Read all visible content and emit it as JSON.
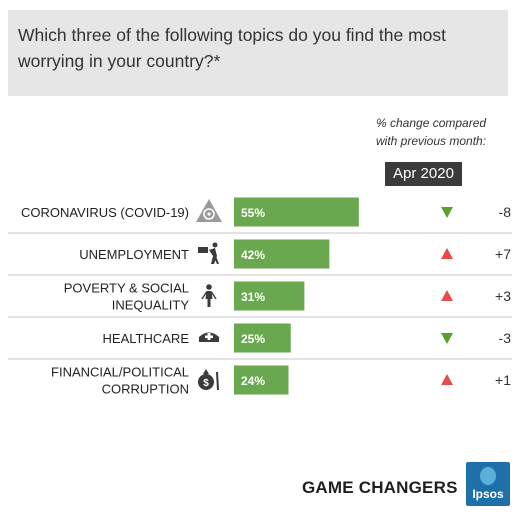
{
  "question": "Which three of the following topics do you find the most worrying in your country?*",
  "compare_label_line1": "% change compared",
  "compare_label_line2": "with previous month:",
  "period": "Apr 2020",
  "footer_title": "GAME CHANGERS",
  "brand": "Ipsos",
  "colors": {
    "bar": "#6aa84f",
    "up": "#e74c4c",
    "down": "#5aa02c",
    "question_bg": "#e6e6e6"
  },
  "chart_data": {
    "type": "bar",
    "orientation": "horizontal",
    "categories": [
      {
        "label_lines": [
          "CORONAVIRUS (COVID-19)"
        ],
        "icon": "biohazard-icon"
      },
      {
        "label_lines": [
          "UNEMPLOYMENT"
        ],
        "icon": "unemployment-icon"
      },
      {
        "label_lines": [
          "POVERTY & SOCIAL",
          "INEQUALITY"
        ],
        "icon": "person-icon"
      },
      {
        "label_lines": [
          "HEALTHCARE"
        ],
        "icon": "nurse-cap-icon"
      },
      {
        "label_lines": [
          "FINANCIAL/POLITICAL",
          "CORRUPTION"
        ],
        "icon": "money-bag-icon"
      }
    ],
    "values": [
      55,
      42,
      31,
      25,
      24
    ],
    "value_labels": [
      "55%",
      "42%",
      "31%",
      "25%",
      "24%"
    ],
    "changes": [
      {
        "direction": "down",
        "label": "-8"
      },
      {
        "direction": "up",
        "label": "+7"
      },
      {
        "direction": "up",
        "label": "+3"
      },
      {
        "direction": "down",
        "label": "-3"
      },
      {
        "direction": "up",
        "label": "+1"
      }
    ],
    "xlim": [
      0,
      100
    ]
  }
}
